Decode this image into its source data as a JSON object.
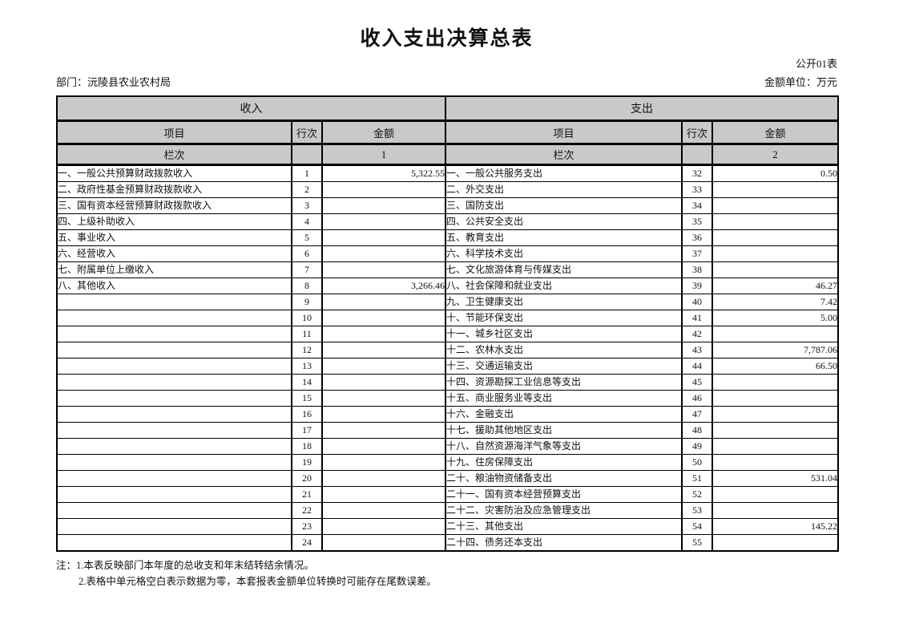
{
  "page": {
    "title": "收入支出决算总表",
    "table_code": "公开01表",
    "department_label": "部门：",
    "department": "沅陵县农业农村局",
    "unit_label": "金额单位：",
    "unit": "万元"
  },
  "table": {
    "income_header": "收入",
    "expense_header": "支出",
    "col_item": "项目",
    "col_line": "行次",
    "col_amount": "金额",
    "col_index_label": "栏次",
    "income_col_index": "1",
    "expense_col_index": "2",
    "rows": [
      {
        "income_item": "一、一般公共预算财政拨款收入",
        "income_line": "1",
        "income_amount": "5,322.55",
        "expense_item": "一、一般公共服务支出",
        "expense_line": "32",
        "expense_amount": "0.50"
      },
      {
        "income_item": "二、政府性基金预算财政拨款收入",
        "income_line": "2",
        "income_amount": "",
        "expense_item": "二、外交支出",
        "expense_line": "33",
        "expense_amount": ""
      },
      {
        "income_item": "三、国有资本经营预算财政拨款收入",
        "income_line": "3",
        "income_amount": "",
        "expense_item": "三、国防支出",
        "expense_line": "34",
        "expense_amount": ""
      },
      {
        "income_item": "四、上级补助收入",
        "income_line": "4",
        "income_amount": "",
        "expense_item": "四、公共安全支出",
        "expense_line": "35",
        "expense_amount": ""
      },
      {
        "income_item": "五、事业收入",
        "income_line": "5",
        "income_amount": "",
        "expense_item": "五、教育支出",
        "expense_line": "36",
        "expense_amount": ""
      },
      {
        "income_item": "六、经营收入",
        "income_line": "6",
        "income_amount": "",
        "expense_item": "六、科学技术支出",
        "expense_line": "37",
        "expense_amount": ""
      },
      {
        "income_item": "七、附属单位上缴收入",
        "income_line": "7",
        "income_amount": "",
        "expense_item": "七、文化旅游体育与传媒支出",
        "expense_line": "38",
        "expense_amount": ""
      },
      {
        "income_item": "八、其他收入",
        "income_line": "8",
        "income_amount": "3,266.46",
        "expense_item": "八、社会保障和就业支出",
        "expense_line": "39",
        "expense_amount": "46.27"
      },
      {
        "income_item": "",
        "income_line": "9",
        "income_amount": "",
        "expense_item": "九、卫生健康支出",
        "expense_line": "40",
        "expense_amount": "7.42"
      },
      {
        "income_item": "",
        "income_line": "10",
        "income_amount": "",
        "expense_item": "十、节能环保支出",
        "expense_line": "41",
        "expense_amount": "5.00"
      },
      {
        "income_item": "",
        "income_line": "11",
        "income_amount": "",
        "expense_item": "十一、城乡社区支出",
        "expense_line": "42",
        "expense_amount": ""
      },
      {
        "income_item": "",
        "income_line": "12",
        "income_amount": "",
        "expense_item": "十二、农林水支出",
        "expense_line": "43",
        "expense_amount": "7,787.06"
      },
      {
        "income_item": "",
        "income_line": "13",
        "income_amount": "",
        "expense_item": "十三、交通运输支出",
        "expense_line": "44",
        "expense_amount": "66.50"
      },
      {
        "income_item": "",
        "income_line": "14",
        "income_amount": "",
        "expense_item": "十四、资源勘探工业信息等支出",
        "expense_line": "45",
        "expense_amount": ""
      },
      {
        "income_item": "",
        "income_line": "15",
        "income_amount": "",
        "expense_item": "十五、商业服务业等支出",
        "expense_line": "46",
        "expense_amount": ""
      },
      {
        "income_item": "",
        "income_line": "16",
        "income_amount": "",
        "expense_item": "十六、金融支出",
        "expense_line": "47",
        "expense_amount": ""
      },
      {
        "income_item": "",
        "income_line": "17",
        "income_amount": "",
        "expense_item": "十七、援助其他地区支出",
        "expense_line": "48",
        "expense_amount": ""
      },
      {
        "income_item": "",
        "income_line": "18",
        "income_amount": "",
        "expense_item": "十八、自然资源海洋气象等支出",
        "expense_line": "49",
        "expense_amount": ""
      },
      {
        "income_item": "",
        "income_line": "19",
        "income_amount": "",
        "expense_item": "十九、住房保障支出",
        "expense_line": "50",
        "expense_amount": ""
      },
      {
        "income_item": "",
        "income_line": "20",
        "income_amount": "",
        "expense_item": "二十、粮油物资储备支出",
        "expense_line": "51",
        "expense_amount": "531.04"
      },
      {
        "income_item": "",
        "income_line": "21",
        "income_amount": "",
        "expense_item": "二十一、国有资本经营预算支出",
        "expense_line": "52",
        "expense_amount": ""
      },
      {
        "income_item": "",
        "income_line": "22",
        "income_amount": "",
        "expense_item": "二十二、灾害防治及应急管理支出",
        "expense_line": "53",
        "expense_amount": ""
      },
      {
        "income_item": "",
        "income_line": "23",
        "income_amount": "",
        "expense_item": "二十三、其他支出",
        "expense_line": "54",
        "expense_amount": "145.22"
      },
      {
        "income_item": "",
        "income_line": "24",
        "income_amount": "",
        "expense_item": "二十四、债务还本支出",
        "expense_line": "55",
        "expense_amount": ""
      }
    ]
  },
  "notes": {
    "line1": "注：1.本表反映部门本年度的总收支和年末结转结余情况。",
    "line2": "2.表格中单元格空白表示数据为零，本套报表金额单位转换时可能存在尾数误差。"
  },
  "colors": {
    "header_bg": "#c9c9c9",
    "border": "#000000"
  }
}
